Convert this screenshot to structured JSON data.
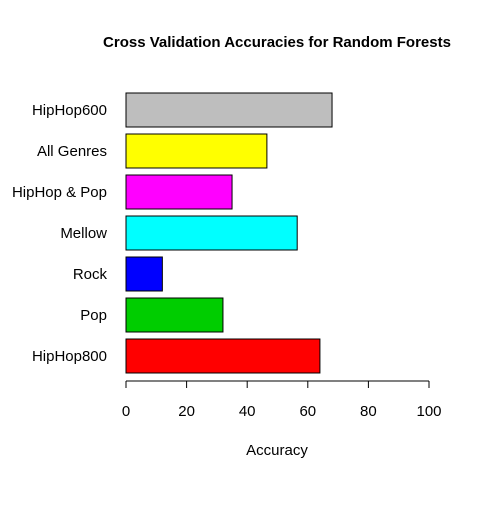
{
  "chart_data": {
    "type": "bar",
    "orientation": "horizontal",
    "title": "Cross Validation Accuracies for Random Forests",
    "xlabel": "Accuracy",
    "ylabel": "",
    "xlim": [
      0,
      100
    ],
    "xticks": [
      "0",
      "20",
      "40",
      "60",
      "80",
      "100"
    ],
    "grid": false,
    "legend": "none",
    "categories": [
      "HipHop800",
      "Pop",
      "Rock",
      "Mellow",
      "HipHop & Pop",
      "All Genres",
      "HipHop600"
    ],
    "values": [
      64,
      32,
      12,
      56.5,
      35,
      46.5,
      68
    ],
    "colors": [
      "#ff0000",
      "#00cd00",
      "#0000ff",
      "#00ffff",
      "#ff00ff",
      "#ffff00",
      "#bebebe"
    ]
  }
}
